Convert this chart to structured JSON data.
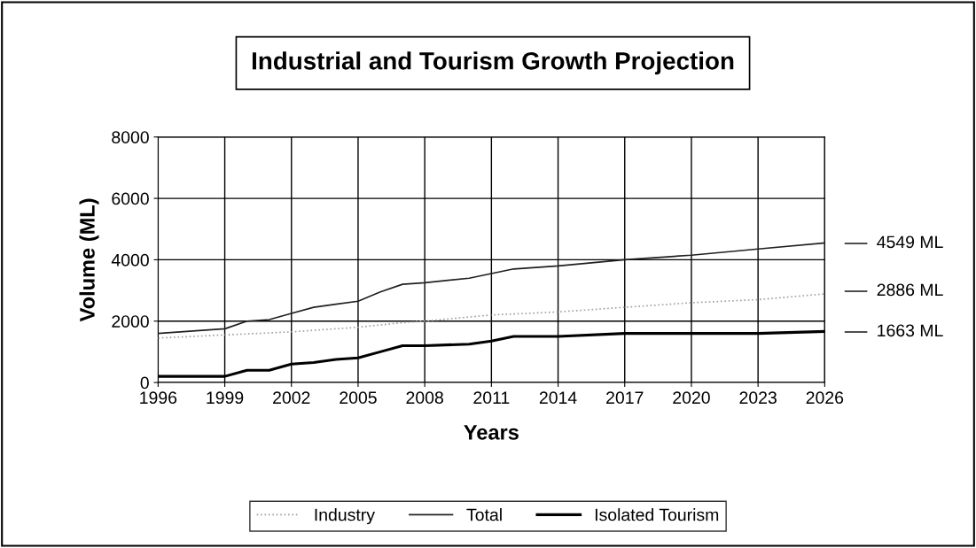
{
  "chart_data": {
    "type": "line",
    "title": "Industrial and Tourism Growth Projection",
    "xlabel": "Years",
    "ylabel": "Volume (ML)",
    "xlim": [
      1996,
      2026
    ],
    "xticks": [
      1996,
      1999,
      2002,
      2005,
      2008,
      2011,
      2014,
      2017,
      2020,
      2023,
      2026
    ],
    "ylim": [
      0,
      8000
    ],
    "yticks": [
      0,
      2000,
      4000,
      6000,
      8000
    ],
    "grid": true,
    "legend": "bottom",
    "marker": "none",
    "series": [
      {
        "name": "Industry",
        "color": "#a0a0a0",
        "line_style": "dotted",
        "x": [
          1996,
          1999,
          2002,
          2005,
          2007,
          2008,
          2011,
          2014,
          2017,
          2020,
          2023,
          2026
        ],
        "values": [
          1450,
          1550,
          1650,
          1800,
          1950,
          2000,
          2200,
          2300,
          2450,
          2600,
          2700,
          2886
        ]
      },
      {
        "name": "Total",
        "color": "#202020",
        "line_style": "solid",
        "x": [
          1996,
          1999,
          2000,
          2001,
          2002,
          2003,
          2004,
          2005,
          2006,
          2007,
          2008,
          2010,
          2011,
          2012,
          2014,
          2017,
          2020,
          2023,
          2026
        ],
        "values": [
          1600,
          1750,
          2000,
          2050,
          2250,
          2450,
          2550,
          2650,
          2950,
          3200,
          3250,
          3400,
          3550,
          3700,
          3800,
          4000,
          4150,
          4350,
          4549
        ]
      },
      {
        "name": "Isolated Tourism",
        "color": "#000000",
        "line_style": "solid",
        "x": [
          1996,
          1999,
          2000,
          2001,
          2002,
          2003,
          2004,
          2005,
          2006,
          2007,
          2008,
          2010,
          2011,
          2012,
          2014,
          2017,
          2020,
          2023,
          2026
        ],
        "values": [
          200,
          200,
          400,
          400,
          600,
          650,
          750,
          800,
          1000,
          1200,
          1200,
          1250,
          1350,
          1500,
          1500,
          1600,
          1600,
          1600,
          1663
        ]
      }
    ],
    "annotations": [
      "4549 ML",
      "2886 ML",
      "1663 ML"
    ]
  }
}
